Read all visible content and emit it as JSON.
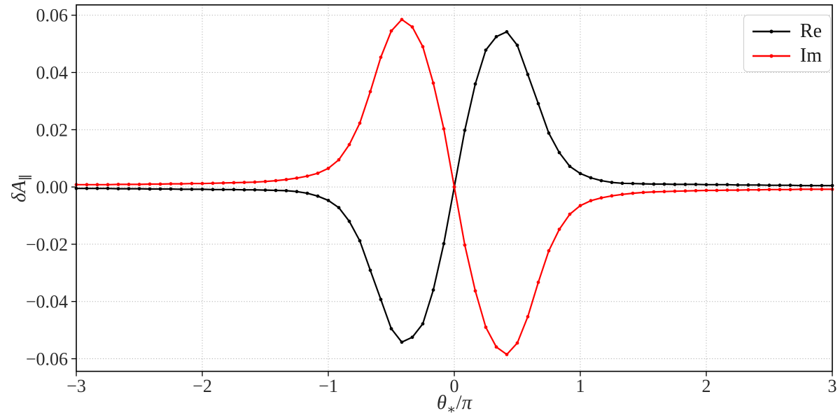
{
  "figure": {
    "background": "#ffffff",
    "xlabel_parts": {
      "theta": "θ",
      "sub": "∗",
      "slash": "/",
      "pi": "π"
    },
    "ylabel_parts": {
      "base": "δA",
      "sub": "∥"
    }
  },
  "chart_data": {
    "type": "line",
    "title": "",
    "xlabel": "θ∗/π",
    "ylabel": "δA∥",
    "xlim": [
      -3,
      3
    ],
    "ylim": [
      -0.0644,
      0.0636
    ],
    "grid": true,
    "grid_style": "dotted",
    "grid_color": "#b0b0b0",
    "legend_position": "upper right",
    "marker": "point",
    "xticks": {
      "values": [
        -3,
        -2,
        -1,
        0,
        1,
        2,
        3
      ],
      "labels": [
        "−3",
        "−2",
        "−1",
        "0",
        "1",
        "2",
        "3"
      ]
    },
    "yticks": {
      "values": [
        -0.06,
        -0.04,
        -0.02,
        0.0,
        0.02,
        0.04,
        0.06
      ],
      "labels": [
        "−0.06",
        "−0.04",
        "−0.02",
        "0.00",
        "0.02",
        "0.04",
        "0.06"
      ]
    },
    "x": [
      -3.0,
      -2.9167,
      -2.8333,
      -2.75,
      -2.6667,
      -2.5833,
      -2.5,
      -2.4167,
      -2.3333,
      -2.25,
      -2.1667,
      -2.0833,
      -2.0,
      -1.9167,
      -1.8333,
      -1.75,
      -1.6667,
      -1.5833,
      -1.5,
      -1.4167,
      -1.3333,
      -1.25,
      -1.1667,
      -1.0833,
      -1.0,
      -0.9167,
      -0.8333,
      -0.75,
      -0.6667,
      -0.5833,
      -0.5,
      -0.4167,
      -0.3333,
      -0.25,
      -0.1667,
      -0.0833,
      0.0,
      0.0833,
      0.1667,
      0.25,
      0.3333,
      0.4167,
      0.5,
      0.5833,
      0.6667,
      0.75,
      0.8333,
      0.9167,
      1.0,
      1.0833,
      1.1667,
      1.25,
      1.3333,
      1.4167,
      1.5,
      1.5833,
      1.6667,
      1.75,
      1.8333,
      1.9167,
      2.0,
      2.0833,
      2.1667,
      2.25,
      2.3333,
      2.4167,
      2.5,
      2.5833,
      2.6667,
      2.75,
      2.8333,
      2.9167,
      3.0
    ],
    "series": [
      {
        "name": "Re",
        "color": "#000000",
        "values": [
          -0.0005,
          -0.0005,
          -0.0005,
          -0.0005,
          -0.0006,
          -0.0006,
          -0.0006,
          -0.0007,
          -0.0007,
          -0.0007,
          -0.0008,
          -0.0008,
          -0.0008,
          -0.0009,
          -0.0009,
          -0.0009,
          -0.001,
          -0.001,
          -0.0011,
          -0.0012,
          -0.0013,
          -0.0016,
          -0.0022,
          -0.0032,
          -0.0047,
          -0.0072,
          -0.012,
          -0.0188,
          -0.0291,
          -0.0393,
          -0.0495,
          -0.0542,
          -0.0525,
          -0.0478,
          -0.036,
          -0.0198,
          0.0,
          0.0198,
          0.036,
          0.0478,
          0.0525,
          0.0542,
          0.0495,
          0.0393,
          0.0291,
          0.0188,
          0.012,
          0.0072,
          0.0047,
          0.0032,
          0.0022,
          0.0016,
          0.0013,
          0.0012,
          0.0011,
          0.001,
          0.001,
          0.0009,
          0.0009,
          0.0009,
          0.0008,
          0.0008,
          0.0008,
          0.0007,
          0.0007,
          0.0007,
          0.0006,
          0.0006,
          0.0006,
          0.0005,
          0.0005,
          0.0005,
          0.0005
        ]
      },
      {
        "name": "Im",
        "color": "#ff0000",
        "values": [
          0.0008,
          0.0008,
          0.0008,
          0.0008,
          0.0009,
          0.0009,
          0.0009,
          0.001,
          0.001,
          0.0011,
          0.0011,
          0.0012,
          0.0012,
          0.0013,
          0.0014,
          0.0015,
          0.0016,
          0.0017,
          0.0019,
          0.0022,
          0.0026,
          0.0031,
          0.0038,
          0.0048,
          0.0065,
          0.0095,
          0.0148,
          0.0223,
          0.0333,
          0.0453,
          0.0545,
          0.0585,
          0.0559,
          0.049,
          0.0363,
          0.0203,
          0.0,
          -0.0203,
          -0.0363,
          -0.049,
          -0.0559,
          -0.0585,
          -0.0545,
          -0.0453,
          -0.0333,
          -0.0223,
          -0.0148,
          -0.0095,
          -0.0065,
          -0.0048,
          -0.0038,
          -0.0031,
          -0.0026,
          -0.0022,
          -0.0019,
          -0.0017,
          -0.0016,
          -0.0015,
          -0.0014,
          -0.0013,
          -0.0012,
          -0.0012,
          -0.0011,
          -0.0011,
          -0.001,
          -0.001,
          -0.0009,
          -0.0009,
          -0.0009,
          -0.0008,
          -0.0008,
          -0.0008,
          -0.0008
        ]
      }
    ]
  }
}
